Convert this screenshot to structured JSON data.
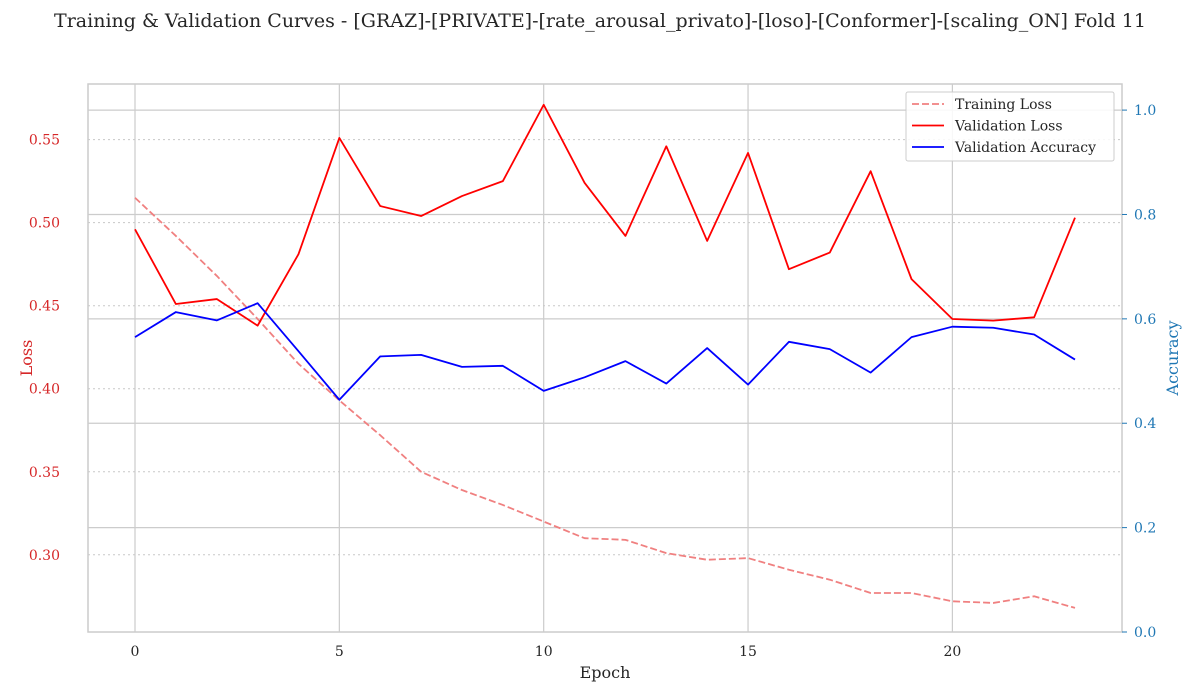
{
  "chart_data": {
    "type": "line",
    "title": "Training & Validation Curves - [GRAZ]-[PRIVATE]-[rate_arousal_privato]-[loso]-[Conformer]-[scaling_ON] Fold 11",
    "xlabel": "Epoch",
    "ylabel_left": "Loss",
    "ylabel_right": "Accuracy",
    "xlim": [
      -1.15,
      24.15
    ],
    "ylim_left": [
      0.2535,
      0.5835
    ],
    "ylim_right": [
      0.0,
      1.05
    ],
    "x_ticks": [
      0,
      5,
      10,
      15,
      20
    ],
    "y_ticks_left": [
      0.3,
      0.35,
      0.4,
      0.45,
      0.5,
      0.55
    ],
    "y_ticks_right": [
      0.0,
      0.2,
      0.4,
      0.6,
      0.8,
      1.0
    ],
    "grid": true,
    "legend_position": "top-right",
    "colors": {
      "left_axis": "#d62728",
      "right_axis": "#1f77b4",
      "training_loss": "#f08080",
      "validation_loss": "#ff0000",
      "validation_accuracy": "#0000ff"
    },
    "x": [
      0,
      1,
      2,
      3,
      4,
      5,
      6,
      7,
      8,
      9,
      10,
      11,
      12,
      13,
      14,
      15,
      16,
      17,
      18,
      19,
      20,
      21,
      22,
      23
    ],
    "series": [
      {
        "name": "Training Loss",
        "axis": "left",
        "style": "dashed",
        "color": "#f08080",
        "values": [
          0.515,
          0.492,
          0.468,
          0.442,
          0.415,
          0.393,
          0.372,
          0.35,
          0.339,
          0.33,
          0.32,
          0.31,
          0.309,
          0.301,
          0.297,
          0.298,
          0.291,
          0.285,
          0.277,
          0.277,
          0.272,
          0.271,
          0.275,
          0.268
        ]
      },
      {
        "name": "Validation Loss",
        "axis": "left",
        "style": "solid",
        "color": "#ff0000",
        "values": [
          0.496,
          0.451,
          0.454,
          0.438,
          0.481,
          0.551,
          0.51,
          0.504,
          0.516,
          0.525,
          0.571,
          0.524,
          0.492,
          0.546,
          0.489,
          0.542,
          0.472,
          0.482,
          0.531,
          0.466,
          0.442,
          0.441,
          0.443,
          0.503
        ]
      },
      {
        "name": "Validation Accuracy",
        "axis": "right",
        "style": "solid",
        "color": "#0000ff",
        "values": [
          0.565,
          0.613,
          0.597,
          0.63,
          0.538,
          0.445,
          0.528,
          0.531,
          0.508,
          0.51,
          0.462,
          0.488,
          0.519,
          0.476,
          0.544,
          0.474,
          0.556,
          0.542,
          0.497,
          0.565,
          0.585,
          0.583,
          0.57,
          0.522
        ]
      }
    ]
  }
}
